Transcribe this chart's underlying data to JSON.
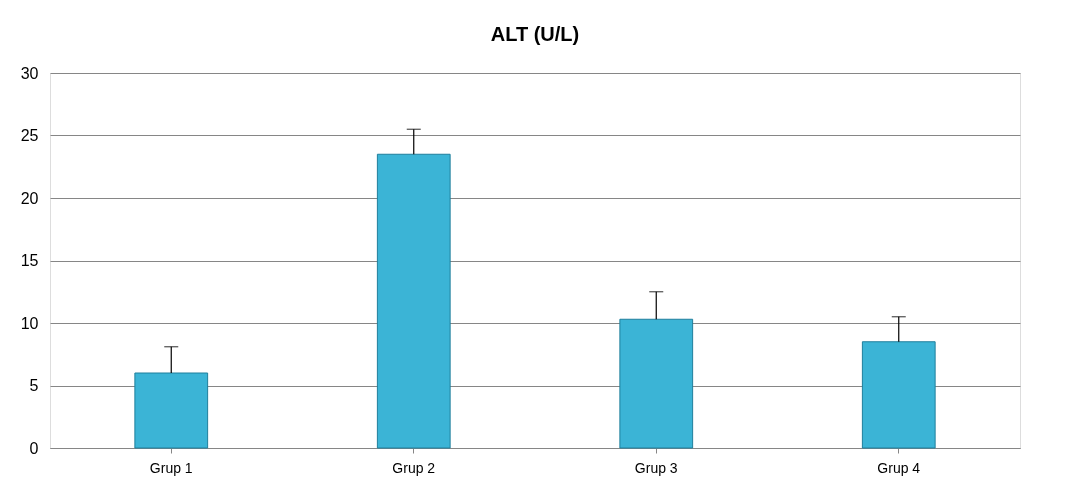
{
  "chart_data": {
    "type": "bar",
    "title": "ALT (U/L)",
    "categories": [
      "Grup 1",
      "Grup 2",
      "Grup 3",
      "Grup 4"
    ],
    "values": [
      6.0,
      23.5,
      10.3,
      8.5
    ],
    "errors": [
      [
        6.0,
        8.1
      ],
      [
        23.5,
        25.5
      ],
      [
        10.3,
        12.5
      ],
      [
        8.5,
        10.5
      ]
    ],
    "color": "#3bb4d6",
    "ylim": [
      0,
      30
    ],
    "yticks": [
      0,
      5,
      10,
      15,
      20,
      25,
      30
    ],
    "grid": "y"
  }
}
